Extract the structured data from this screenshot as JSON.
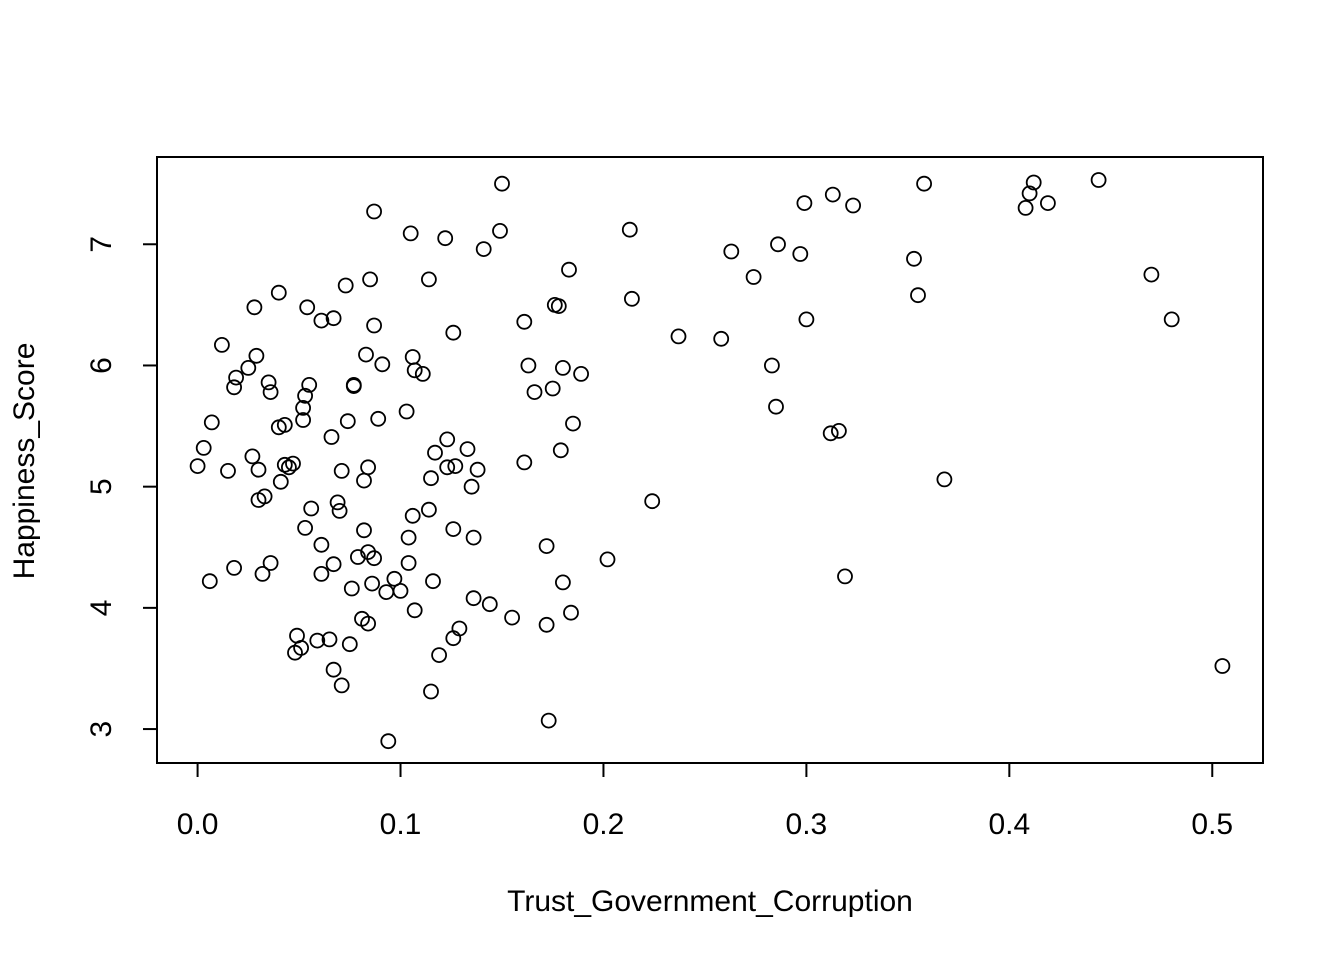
{
  "chart_data": {
    "type": "scatter",
    "title": "",
    "xlabel": "Trust_Government_Corruption",
    "ylabel": "Happiness_Score",
    "xlim": [
      -0.02,
      0.525
    ],
    "ylim": [
      2.72,
      7.72
    ],
    "xticks": [
      0.0,
      0.1,
      0.2,
      0.3,
      0.4,
      0.5
    ],
    "xtick_labels": [
      "0.0",
      "0.1",
      "0.2",
      "0.3",
      "0.4",
      "0.5"
    ],
    "yticks": [
      3,
      4,
      5,
      6,
      7
    ],
    "ytick_labels": [
      "3",
      "4",
      "5",
      "6",
      "7"
    ],
    "grid": false,
    "marker": "open-circle",
    "points": [
      [
        0.0,
        5.17
      ],
      [
        0.003,
        5.32
      ],
      [
        0.006,
        4.22
      ],
      [
        0.007,
        5.53
      ],
      [
        0.012,
        6.17
      ],
      [
        0.015,
        5.13
      ],
      [
        0.018,
        5.82
      ],
      [
        0.018,
        4.33
      ],
      [
        0.019,
        5.9
      ],
      [
        0.025,
        5.98
      ],
      [
        0.027,
        5.25
      ],
      [
        0.028,
        6.48
      ],
      [
        0.029,
        6.08
      ],
      [
        0.03,
        5.14
      ],
      [
        0.03,
        4.89
      ],
      [
        0.032,
        4.28
      ],
      [
        0.033,
        4.92
      ],
      [
        0.035,
        5.86
      ],
      [
        0.036,
        5.78
      ],
      [
        0.036,
        4.37
      ],
      [
        0.04,
        6.6
      ],
      [
        0.04,
        5.49
      ],
      [
        0.041,
        5.04
      ],
      [
        0.043,
        5.51
      ],
      [
        0.043,
        5.18
      ],
      [
        0.045,
        5.16
      ],
      [
        0.047,
        5.19
      ],
      [
        0.048,
        3.63
      ],
      [
        0.049,
        3.77
      ],
      [
        0.051,
        3.67
      ],
      [
        0.052,
        5.65
      ],
      [
        0.052,
        5.55
      ],
      [
        0.053,
        5.75
      ],
      [
        0.053,
        4.66
      ],
      [
        0.054,
        6.48
      ],
      [
        0.055,
        5.84
      ],
      [
        0.056,
        4.82
      ],
      [
        0.059,
        3.73
      ],
      [
        0.061,
        6.37
      ],
      [
        0.061,
        4.52
      ],
      [
        0.061,
        4.28
      ],
      [
        0.065,
        3.74
      ],
      [
        0.066,
        5.41
      ],
      [
        0.067,
        6.39
      ],
      [
        0.067,
        4.36
      ],
      [
        0.067,
        3.49
      ],
      [
        0.069,
        4.87
      ],
      [
        0.07,
        4.8
      ],
      [
        0.071,
        5.13
      ],
      [
        0.071,
        3.36
      ],
      [
        0.073,
        6.66
      ],
      [
        0.074,
        5.54
      ],
      [
        0.075,
        3.7
      ],
      [
        0.076,
        4.16
      ],
      [
        0.077,
        5.84
      ],
      [
        0.077,
        5.83
      ],
      [
        0.079,
        4.42
      ],
      [
        0.081,
        3.91
      ],
      [
        0.082,
        5.05
      ],
      [
        0.082,
        4.64
      ],
      [
        0.083,
        6.09
      ],
      [
        0.084,
        5.16
      ],
      [
        0.084,
        4.46
      ],
      [
        0.084,
        3.87
      ],
      [
        0.085,
        6.71
      ],
      [
        0.086,
        4.2
      ],
      [
        0.087,
        7.27
      ],
      [
        0.087,
        6.33
      ],
      [
        0.087,
        4.41
      ],
      [
        0.089,
        5.56
      ],
      [
        0.091,
        6.01
      ],
      [
        0.093,
        4.13
      ],
      [
        0.094,
        2.9
      ],
      [
        0.097,
        4.24
      ],
      [
        0.1,
        4.14
      ],
      [
        0.103,
        5.62
      ],
      [
        0.104,
        4.58
      ],
      [
        0.104,
        4.37
      ],
      [
        0.105,
        7.09
      ],
      [
        0.106,
        6.07
      ],
      [
        0.106,
        4.76
      ],
      [
        0.107,
        5.96
      ],
      [
        0.107,
        3.98
      ],
      [
        0.111,
        5.93
      ],
      [
        0.114,
        6.71
      ],
      [
        0.114,
        4.81
      ],
      [
        0.115,
        5.07
      ],
      [
        0.115,
        3.31
      ],
      [
        0.116,
        4.22
      ],
      [
        0.117,
        5.28
      ],
      [
        0.119,
        3.61
      ],
      [
        0.122,
        7.05
      ],
      [
        0.123,
        5.39
      ],
      [
        0.123,
        5.16
      ],
      [
        0.126,
        6.27
      ],
      [
        0.126,
        4.65
      ],
      [
        0.126,
        3.75
      ],
      [
        0.127,
        5.17
      ],
      [
        0.129,
        3.83
      ],
      [
        0.133,
        5.31
      ],
      [
        0.135,
        5.0
      ],
      [
        0.136,
        4.58
      ],
      [
        0.136,
        4.08
      ],
      [
        0.138,
        5.14
      ],
      [
        0.141,
        6.96
      ],
      [
        0.144,
        4.03
      ],
      [
        0.149,
        7.11
      ],
      [
        0.15,
        7.5
      ],
      [
        0.155,
        3.92
      ],
      [
        0.161,
        6.36
      ],
      [
        0.161,
        5.2
      ],
      [
        0.163,
        6.0
      ],
      [
        0.166,
        5.78
      ],
      [
        0.172,
        4.51
      ],
      [
        0.172,
        3.86
      ],
      [
        0.173,
        3.07
      ],
      [
        0.175,
        5.81
      ],
      [
        0.176,
        6.5
      ],
      [
        0.178,
        6.49
      ],
      [
        0.179,
        5.3
      ],
      [
        0.18,
        5.98
      ],
      [
        0.18,
        4.21
      ],
      [
        0.183,
        6.79
      ],
      [
        0.184,
        3.96
      ],
      [
        0.185,
        5.52
      ],
      [
        0.189,
        5.93
      ],
      [
        0.202,
        4.4
      ],
      [
        0.213,
        7.12
      ],
      [
        0.214,
        6.55
      ],
      [
        0.224,
        4.88
      ],
      [
        0.237,
        6.24
      ],
      [
        0.258,
        6.22
      ],
      [
        0.263,
        6.94
      ],
      [
        0.274,
        6.73
      ],
      [
        0.283,
        6.0
      ],
      [
        0.285,
        5.66
      ],
      [
        0.286,
        7.0
      ],
      [
        0.297,
        6.92
      ],
      [
        0.299,
        7.34
      ],
      [
        0.3,
        6.38
      ],
      [
        0.312,
        5.44
      ],
      [
        0.313,
        7.41
      ],
      [
        0.316,
        5.46
      ],
      [
        0.319,
        4.26
      ],
      [
        0.323,
        7.32
      ],
      [
        0.353,
        6.88
      ],
      [
        0.355,
        6.58
      ],
      [
        0.358,
        7.5
      ],
      [
        0.368,
        5.06
      ],
      [
        0.408,
        7.3
      ],
      [
        0.41,
        7.42
      ],
      [
        0.412,
        7.51
      ],
      [
        0.419,
        7.34
      ],
      [
        0.444,
        7.53
      ],
      [
        0.47,
        6.75
      ],
      [
        0.48,
        6.38
      ],
      [
        0.505,
        3.52
      ]
    ]
  }
}
